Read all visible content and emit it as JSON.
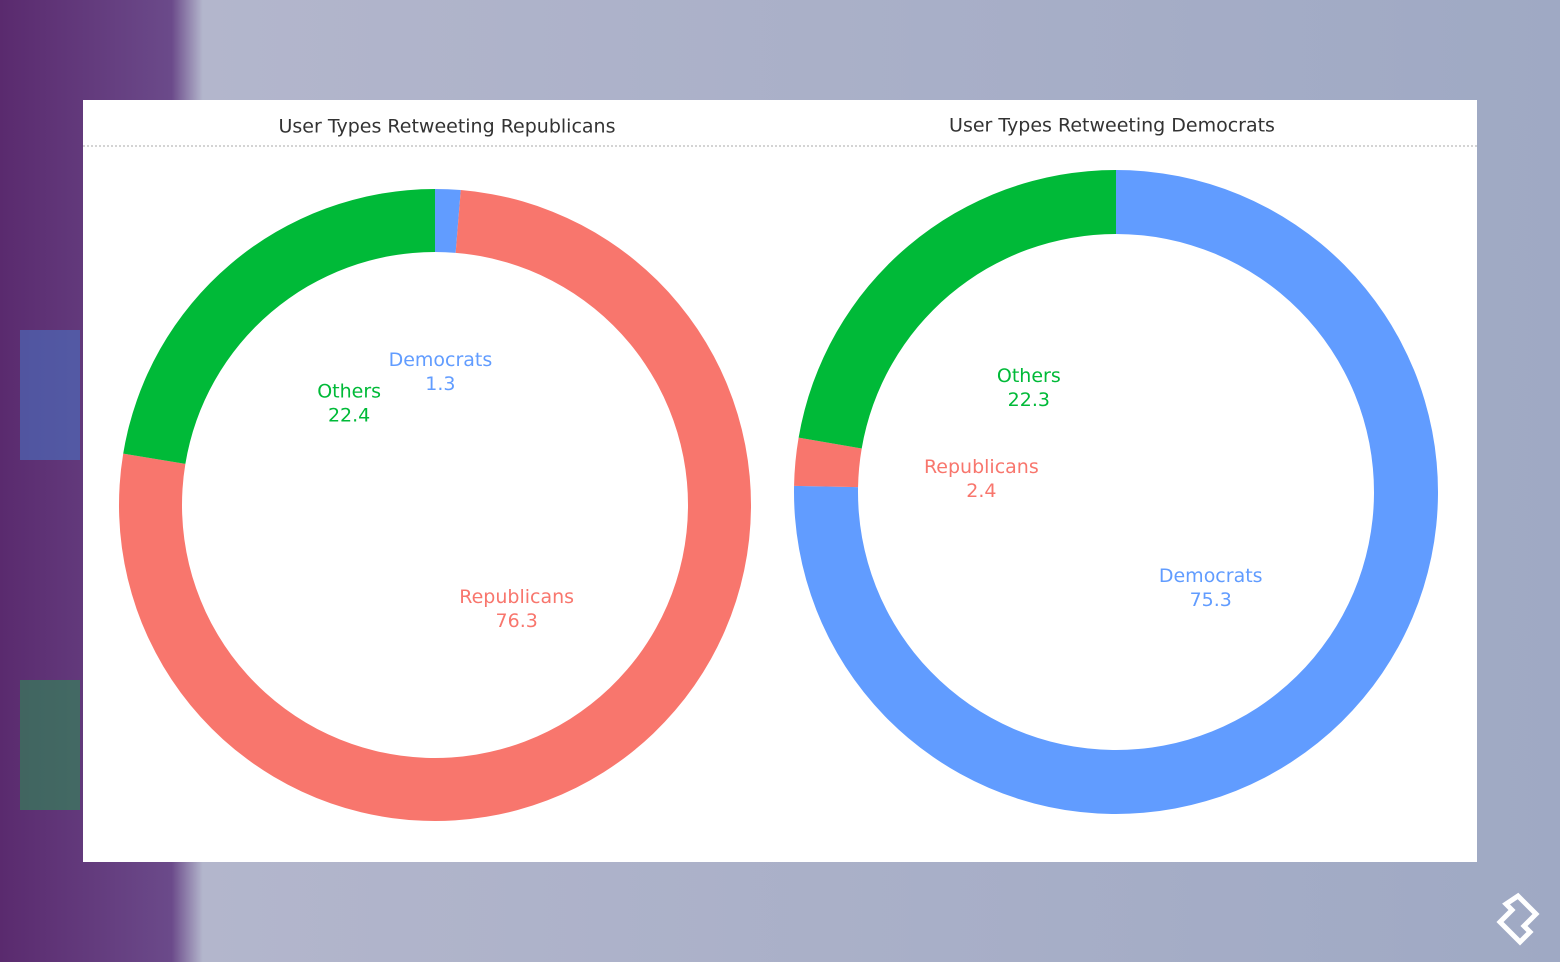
{
  "chart_data": [
    {
      "type": "pie",
      "title": "User Types Retweeting Republicans",
      "categories": [
        "Democrats",
        "Republicans",
        "Others"
      ],
      "values": [
        1.3,
        76.3,
        22.4
      ],
      "colors": [
        "#619cff",
        "#f8766d",
        "#00ba38"
      ]
    },
    {
      "type": "pie",
      "title": "User Types Retweeting Democrats",
      "categories": [
        "Democrats",
        "Republicans",
        "Others"
      ],
      "values": [
        75.3,
        2.4,
        22.3
      ],
      "colors": [
        "#619cff",
        "#f8766d",
        "#00ba38"
      ]
    }
  ]
}
